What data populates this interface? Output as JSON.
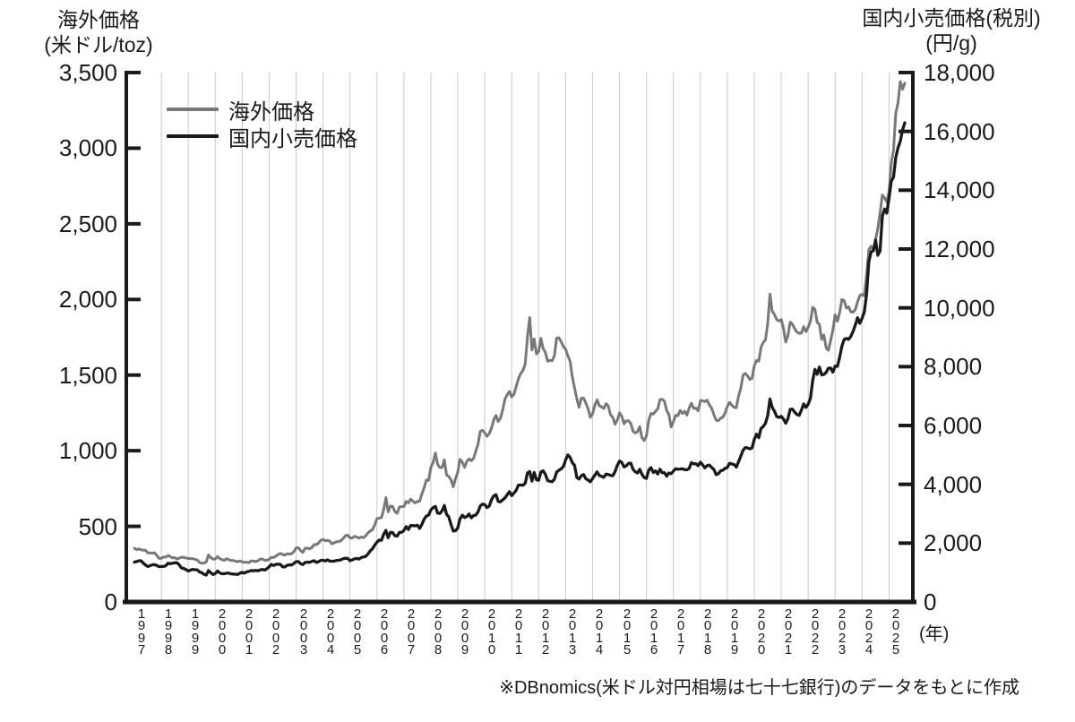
{
  "left_axis_title": {
    "line1": "海外価格",
    "line2": "(米ドル/toz)"
  },
  "right_axis_title": {
    "line1": "国内小売価格(税別)",
    "line2": "(円/g)"
  },
  "legend": {
    "items": [
      {
        "label": "海外価格",
        "color": "#787878"
      },
      {
        "label": "国内小売価格",
        "color": "#1a1a1a"
      }
    ]
  },
  "left_axis": {
    "min": 0,
    "max": 3500,
    "tick_step": 500,
    "tick_labels": [
      "0",
      "500",
      "1,000",
      "1,500",
      "2,000",
      "2,500",
      "3,000",
      "3,500"
    ]
  },
  "right_axis": {
    "min": 0,
    "max": 18000,
    "tick_step": 2000,
    "tick_labels": [
      "0",
      "2,000",
      "4,000",
      "6,000",
      "8,000",
      "10,000",
      "12,000",
      "14,000",
      "16,000",
      "18,000"
    ]
  },
  "x_axis": {
    "unit_label": "(年)",
    "years": [
      1997,
      1998,
      1999,
      2000,
      2001,
      2002,
      2003,
      2004,
      2005,
      2006,
      2007,
      2008,
      2009,
      2010,
      2011,
      2012,
      2013,
      2014,
      2015,
      2016,
      2017,
      2018,
      2019,
      2020,
      2021,
      2022,
      2023,
      2024,
      2025
    ]
  },
  "note": {
    "text": "※DBnomics(米ドル対円相場は七十七銀行)のデータをもとに作成"
  },
  "colors": {
    "grid": "#c8c8c8",
    "axis": "#1a1a1a",
    "overseas": "#787878",
    "domestic": "#1a1a1a"
  },
  "chart_data": {
    "type": "line",
    "frequency": "monthly",
    "x_start": "1997-01",
    "x_end": "2025-08",
    "x_axis_span": [
      "1997-01",
      "2025-12"
    ],
    "left_ylim": [
      0,
      3500
    ],
    "right_ylim": [
      0,
      18000
    ],
    "grid": "vertical-yearly",
    "legend_position": "top-left",
    "series": [
      {
        "name": "海外価格",
        "axis": "left",
        "unit": "米ドル/toz",
        "color": "#787878",
        "values": [
          355,
          346,
          352,
          344,
          343,
          341,
          324,
          324,
          323,
          325,
          307,
          288,
          289,
          297,
          296,
          308,
          299,
          292,
          293,
          284,
          289,
          296,
          294,
          291,
          287,
          287,
          286,
          282,
          277,
          261,
          256,
          257,
          264,
          311,
          293,
          283,
          284,
          300,
          286,
          280,
          275,
          286,
          281,
          274,
          274,
          270,
          266,
          271,
          266,
          262,
          263,
          260,
          272,
          270,
          267,
          272,
          284,
          283,
          276,
          276,
          281,
          295,
          294,
          303,
          314,
          321,
          314,
          310,
          319,
          317,
          319,
          333,
          357,
          359,
          340,
          328,
          355,
          356,
          351,
          360,
          379,
          379,
          390,
          407,
          414,
          405,
          407,
          403,
          384,
          392,
          398,
          400,
          405,
          420,
          439,
          442,
          424,
          423,
          434,
          429,
          422,
          430,
          424,
          437,
          456,
          470,
          477,
          510,
          550,
          555,
          557,
          611,
          690,
          596,
          634,
          632,
          598,
          586,
          628,
          630,
          631,
          665,
          655,
          680,
          667,
          655,
          665,
          665,
          713,
          754,
          806,
          804,
          890,
          922,
          985,
          910,
          889,
          889,
          940,
          839,
          829,
          807,
          761,
          816,
          858,
          943,
          924,
          890,
          929,
          946,
          934,
          949,
          997,
          1043,
          1127,
          1135,
          1118,
          1095,
          1113,
          1149,
          1205,
          1233,
          1193,
          1216,
          1271,
          1342,
          1370,
          1391,
          1356,
          1373,
          1424,
          1474,
          1511,
          1529,
          1573,
          1755,
          1880,
          1666,
          1739,
          1640,
          1656,
          1743,
          1674,
          1650,
          1591,
          1598,
          1594,
          1626,
          1744,
          1747,
          1721,
          1688,
          1671,
          1627,
          1593,
          1487,
          1414,
          1343,
          1287,
          1347,
          1348,
          1316,
          1276,
          1221,
          1244,
          1301,
          1336,
          1298,
          1289,
          1279,
          1311,
          1296,
          1238,
          1222,
          1175,
          1201,
          1251,
          1227,
          1178,
          1198,
          1198,
          1181,
          1130,
          1117,
          1125,
          1159,
          1086,
          1068,
          1097,
          1200,
          1246,
          1242,
          1260,
          1276,
          1337,
          1340,
          1327,
          1266,
          1238,
          1157,
          1192,
          1234,
          1231,
          1266,
          1246,
          1260,
          1236,
          1283,
          1314,
          1280,
          1282,
          1264,
          1331,
          1330,
          1325,
          1334,
          1303,
          1281,
          1238,
          1201,
          1198,
          1215,
          1221,
          1250,
          1292,
          1320,
          1301,
          1286,
          1284,
          1359,
          1413,
          1500,
          1511,
          1495,
          1471,
          1479,
          1561,
          1597,
          1592,
          1683,
          1716,
          1732,
          1843,
          2035,
          1922,
          1900,
          1866,
          1858,
          1867,
          1808,
          1718,
          1762,
          1850,
          1835,
          1807,
          1784,
          1776,
          1777,
          1820,
          1787,
          1817,
          1856,
          1948,
          1934,
          1848,
          1836,
          1736,
          1765,
          1681,
          1664,
          1726,
          1797,
          1898,
          1855,
          1913,
          2000,
          1992,
          1943,
          1951,
          1918,
          1916,
          1934,
          1984,
          2026,
          2034,
          2025,
          2160,
          2330,
          2351,
          2326,
          2398,
          2470,
          2570,
          2690,
          2672,
          2644,
          2710,
          2900,
          2985,
          3230,
          3300,
          3440,
          3390,
          3430
        ]
      },
      {
        "name": "国内小売価格",
        "axis": "right",
        "unit": "円/g",
        "color": "#1a1a1a",
        "values": [
          1355,
          1375,
          1400,
          1400,
          1320,
          1255,
          1205,
          1235,
          1265,
          1270,
          1240,
          1200,
          1205,
          1210,
          1235,
          1315,
          1305,
          1320,
          1335,
          1330,
          1260,
          1155,
          1140,
          1100,
          1050,
          1085,
          1110,
          1095,
          1090,
          1020,
          995,
          940,
          915,
          1065,
          995,
          935,
          965,
          1055,
          990,
          960,
          960,
          980,
          980,
          955,
          950,
          945,
          935,
          980,
          1005,
          980,
          1025,
          1040,
          1070,
          1060,
          1075,
          1060,
          1090,
          1105,
          1085,
          1130,
          1195,
          1275,
          1240,
          1280,
          1285,
          1275,
          1195,
          1190,
          1245,
          1265,
          1255,
          1310,
          1370,
          1375,
          1305,
          1270,
          1340,
          1355,
          1345,
          1380,
          1405,
          1345,
          1370,
          1415,
          1415,
          1395,
          1430,
          1390,
          1385,
          1390,
          1410,
          1415,
          1435,
          1475,
          1485,
          1480,
          1405,
          1430,
          1465,
          1480,
          1455,
          1510,
          1530,
          1550,
          1630,
          1740,
          1810,
          1935,
          2035,
          2105,
          2095,
          2300,
          2435,
          2185,
          2365,
          2360,
          2250,
          2240,
          2365,
          2370,
          2435,
          2565,
          2465,
          2600,
          2595,
          2590,
          2610,
          2500,
          2635,
          2810,
          2920,
          2950,
          3130,
          3210,
          3250,
          3020,
          3010,
          3100,
          3280,
          2980,
          2890,
          2630,
          2410,
          2420,
          2520,
          2825,
          2950,
          2870,
          2905,
          2990,
          2860,
          2935,
          2955,
          3060,
          3265,
          3325,
          3310,
          3210,
          3260,
          3475,
          3605,
          3650,
          3415,
          3405,
          3475,
          3535,
          3650,
          3750,
          3615,
          3705,
          3795,
          3975,
          3975,
          3970,
          4035,
          4390,
          4435,
          4110,
          4405,
          4155,
          4140,
          4415,
          4460,
          4340,
          4130,
          4100,
          4090,
          4170,
          4420,
          4480,
          4525,
          4605,
          4830,
          5000,
          4915,
          4735,
          4640,
          4235,
          4180,
          4290,
          4335,
          4190,
          4145,
          4085,
          4200,
          4310,
          4425,
          4300,
          4270,
          4240,
          4345,
          4335,
          4305,
          4290,
          4425,
          4640,
          4795,
          4745,
          4590,
          4630,
          4710,
          4720,
          4515,
          4425,
          4385,
          4515,
          4340,
          4230,
          4200,
          4480,
          4570,
          4400,
          4460,
          4350,
          4515,
          4395,
          4395,
          4275,
          4385,
          4360,
          4450,
          4530,
          4515,
          4520,
          4530,
          4500,
          4495,
          4540,
          4735,
          4695,
          4700,
          4635,
          4750,
          4665,
          4560,
          4635,
          4655,
          4575,
          4505,
          4330,
          4360,
          4460,
          4480,
          4545,
          4575,
          4715,
          4690,
          4675,
          4585,
          4765,
          4955,
          5160,
          5250,
          5240,
          5205,
          5235,
          5525,
          5705,
          5585,
          5900,
          5965,
          6075,
          6340,
          6900,
          6615,
          6480,
          6300,
          6275,
          6310,
          6220,
          6080,
          6235,
          6550,
          6555,
          6455,
          6375,
          6345,
          6520,
          6735,
          6615,
          6725,
          6930,
          7530,
          7910,
          7740,
          7990,
          7720,
          7735,
          7805,
          7945,
          7955,
          7815,
          8015,
          8010,
          8320,
          8700,
          8925,
          8960,
          8930,
          9030,
          9205,
          9420,
          9665,
          9475,
          9645,
          9860,
          10455,
          11575,
          11910,
          11935,
          12300,
          11790,
          11935,
          13105,
          13360,
          13220,
          13730,
          14310,
          14440,
          15105,
          15440,
          15665,
          16050,
          16290
        ]
      }
    ]
  }
}
